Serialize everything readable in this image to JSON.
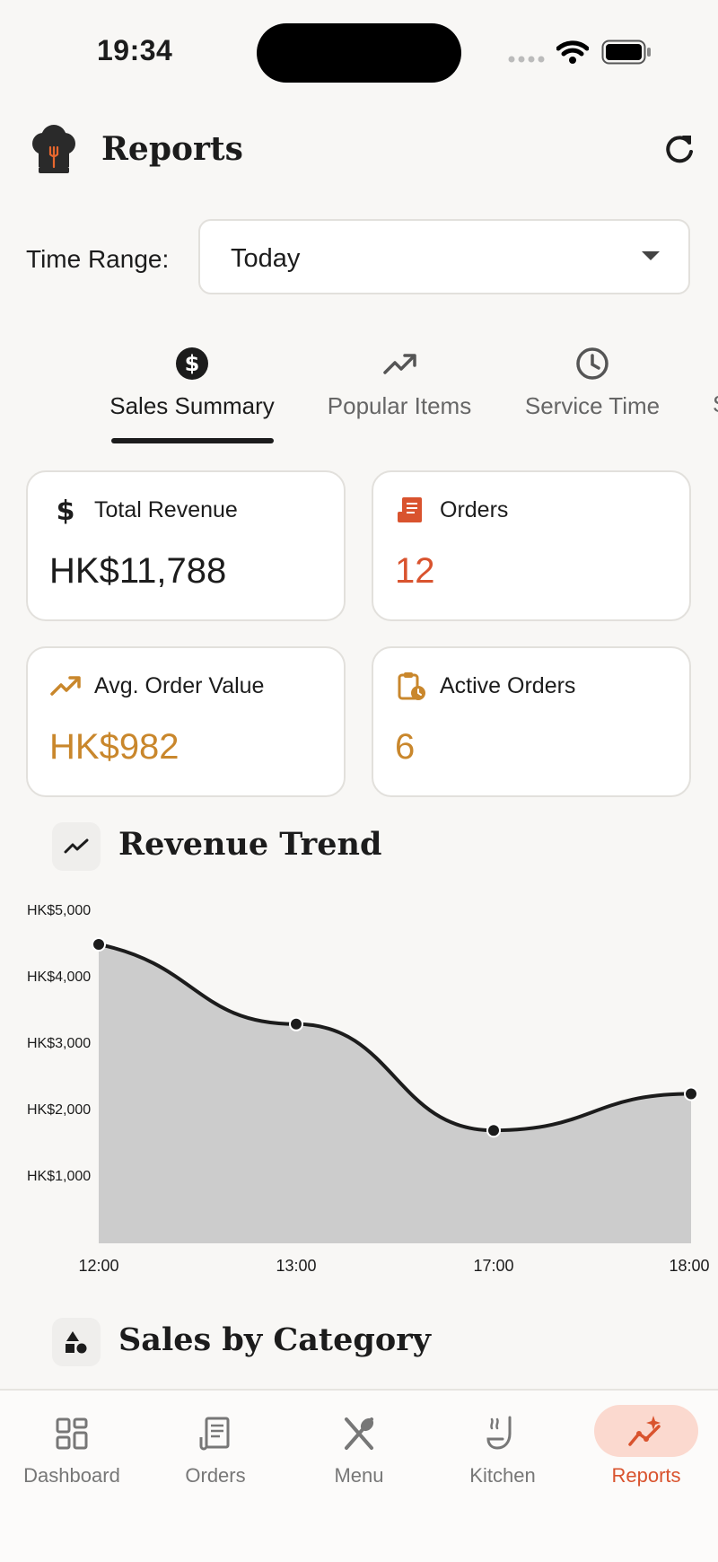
{
  "status_bar": {
    "time": "19:34"
  },
  "header": {
    "title": "Reports"
  },
  "time_range": {
    "label": "Time Range:",
    "selected": "Today"
  },
  "tabs": [
    {
      "label": "Sales Summary",
      "icon": "dollar-circle-icon",
      "active": true
    },
    {
      "label": "Popular Items",
      "icon": "trending-up-icon",
      "active": false
    },
    {
      "label": "Service Time",
      "icon": "clock-icon",
      "active": false
    },
    {
      "label": "S",
      "icon": "",
      "active": false
    }
  ],
  "cards": [
    {
      "label": "Total Revenue",
      "value": "HK$11,788",
      "icon": "dollar-icon",
      "color": "#1C1C1C"
    },
    {
      "label": "Orders",
      "value": "12",
      "icon": "receipt-icon",
      "color": "#D9532E"
    },
    {
      "label": "Avg. Order Value",
      "value": "HK$982",
      "icon": "trending-up-icon",
      "color": "#C9872C"
    },
    {
      "label": "Active Orders",
      "value": "6",
      "icon": "clipboard-clock-icon",
      "color": "#C9872C"
    }
  ],
  "revenue_section": {
    "title": "Revenue Trend"
  },
  "chart_data": {
    "type": "area",
    "title": "Revenue Trend",
    "xlabel": "",
    "ylabel": "",
    "categories": [
      "12:00",
      "13:00",
      "17:00",
      "18:00"
    ],
    "values": [
      4500,
      3300,
      1700,
      2250
    ],
    "y_ticks": [
      "HK$5,000",
      "HK$4,000",
      "HK$3,000",
      "HK$2,000",
      "HK$1,000"
    ],
    "ylim": [
      0,
      5000
    ],
    "grid": false,
    "fill_color": "#CCCCCC",
    "line_color": "#1C1C1C"
  },
  "category_section": {
    "title": "Sales by Category"
  },
  "nav": [
    {
      "label": "Dashboard",
      "icon": "dashboard-icon",
      "active": false
    },
    {
      "label": "Orders",
      "icon": "receipt-icon",
      "active": false
    },
    {
      "label": "Menu",
      "icon": "fork-knife-icon",
      "active": false
    },
    {
      "label": "Kitchen",
      "icon": "ladle-icon",
      "active": false
    },
    {
      "label": "Reports",
      "icon": "chart-sparkle-icon",
      "active": true
    }
  ],
  "colors": {
    "accent": "#D9532E",
    "gold": "#C9872C",
    "background": "#F8F7F5",
    "card_border": "#E2E0DC"
  }
}
